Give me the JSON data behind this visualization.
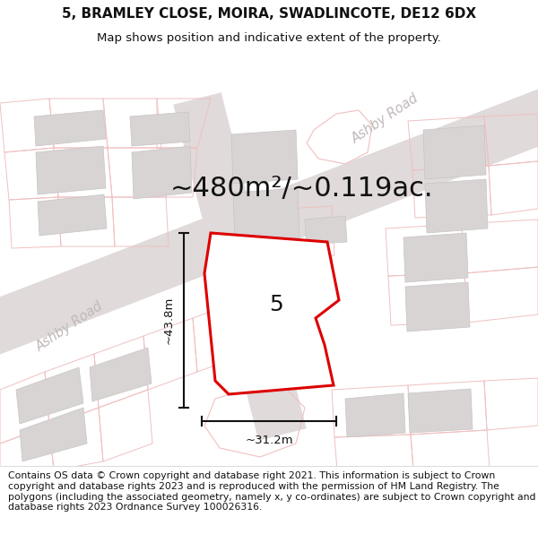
{
  "title_line1": "5, BRAMLEY CLOSE, MOIRA, SWADLINCOTE, DE12 6DX",
  "title_line2": "Map shows position and indicative extent of the property.",
  "area_text": "~480m²/~0.119ac.",
  "label_number": "5",
  "dim_height": "~43.8m",
  "dim_width": "~31.2m",
  "road_label_1": "Ashby Road",
  "road_label_2": "Ashby Road",
  "footer_text": "Contains OS data © Crown copyright and database right 2021. This information is subject to Crown copyright and database rights 2023 and is reproduced with the permission of HM Land Registry. The polygons (including the associated geometry, namely x, y co-ordinates) are subject to Crown copyright and database rights 2023 Ordnance Survey 100026316.",
  "map_bg": "#f5f2f2",
  "plot_outline_color": "#dd0000",
  "road_label_color": "#c0b8b8",
  "dim_line_color": "#111111",
  "cadastral_line": "#f0c0c0",
  "building_fill": "#d8d4d4",
  "building_edge": "#c8c4c4",
  "road_fill": "#e0dada",
  "area_text_fontsize": 22,
  "number_fontsize": 18,
  "title_fontsize": 11,
  "footer_fontsize": 7.8
}
